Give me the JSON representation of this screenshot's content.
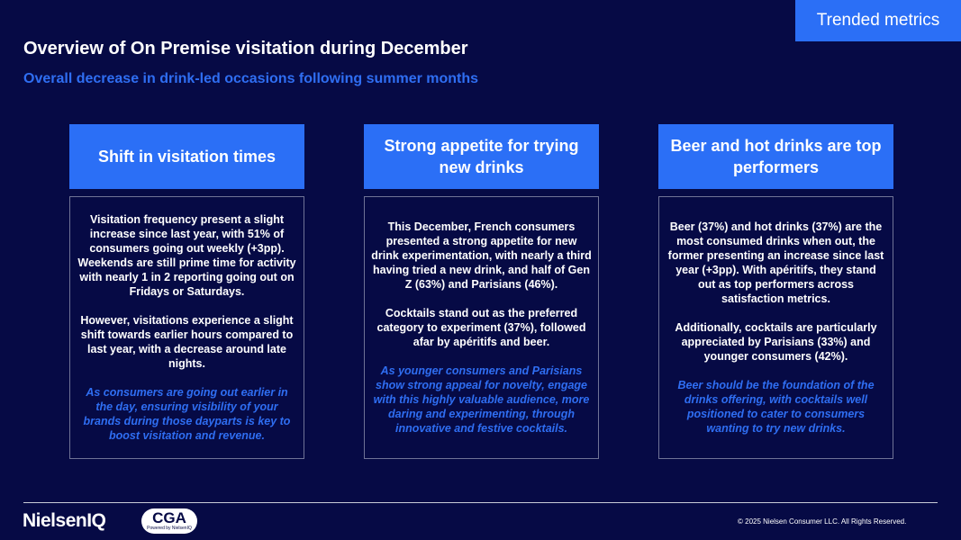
{
  "tag_label": "Trended metrics",
  "title": "Overview of On Premise visitation during December",
  "subtitle": "Overall decrease in drink-led occasions following summer months",
  "columns": [
    {
      "heading": "Shift in visitation times",
      "p1": "Visitation frequency present a slight increase since last year, with 51% of consumers going out weekly (+3pp). Weekends are still prime time for activity with nearly 1 in 2 reporting going out on Fridays or Saturdays.",
      "p2": "However, visitations experience a slight shift towards earlier hours compared to last year, with a decrease around late nights.",
      "takeaway": "As consumers are going out earlier in the day, ensuring visibility of your brands during those dayparts is key to boost visitation and revenue."
    },
    {
      "heading": "Strong appetite for trying new drinks",
      "p1": "This December, French consumers presented a strong appetite for new drink experimentation, with nearly a third having tried a new drink, and half of Gen Z (63%) and Parisians (46%).",
      "p2": "Cocktails stand out as the preferred category to experiment (37%), followed afar by apéritifs and beer.",
      "takeaway": "As younger consumers and Parisians show strong appeal for novelty, engage with this highly valuable audience, more daring and experimenting, through innovative and festive cocktails."
    },
    {
      "heading": "Beer and hot drinks are top performers",
      "p1": "Beer (37%) and hot drinks (37%) are the most consumed drinks when out, the former presenting an increase since last year (+3pp). With apéritifs, they stand out as top performers across satisfaction metrics.",
      "p2": "Additionally, cocktails are particularly appreciated by Parisians (33%) and younger consumers (42%).",
      "takeaway": "Beer should be the foundation of the drinks offering, with cocktails well positioned to cater to consumers wanting to try new drinks."
    }
  ],
  "footer": {
    "logo_primary": "NielsenIQ",
    "logo_secondary": "CGA",
    "logo_secondary_tagline": "Powered by NielsenIQ",
    "copyright": "© 2025 Nielsen Consumer LLC. All Rights Reserved."
  }
}
